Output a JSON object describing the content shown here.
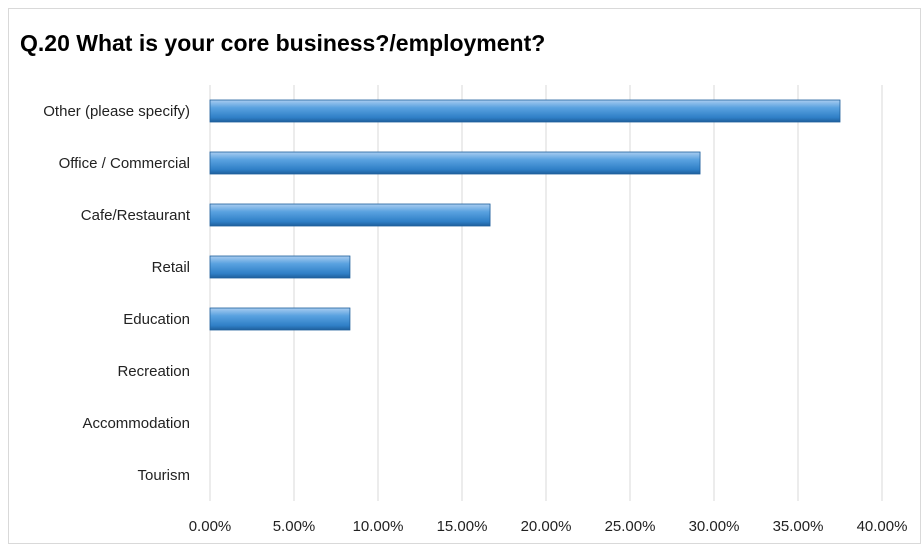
{
  "chart_data": {
    "type": "bar",
    "orientation": "horizontal",
    "title": "Q.20 What is your core business?/employment?",
    "xlabel": "",
    "ylabel": "",
    "categories": [
      "Other (please specify)",
      "Office / Commercial",
      "Cafe/Restaurant",
      "Retail",
      "Education",
      "Recreation",
      "Accommodation",
      "Tourism"
    ],
    "values": [
      37.5,
      29.17,
      16.67,
      8.33,
      8.33,
      0,
      0,
      0
    ],
    "xlim": [
      0,
      40
    ],
    "x_ticks": [
      0,
      5,
      10,
      15,
      20,
      25,
      30,
      35,
      40
    ],
    "x_tick_labels": [
      "0.00%",
      "5.00%",
      "10.00%",
      "15.00%",
      "20.00%",
      "25.00%",
      "30.00%",
      "35.00%",
      "40.00%"
    ],
    "grid": "vertical",
    "legend": "none",
    "bar_color": "#4f97d8"
  }
}
